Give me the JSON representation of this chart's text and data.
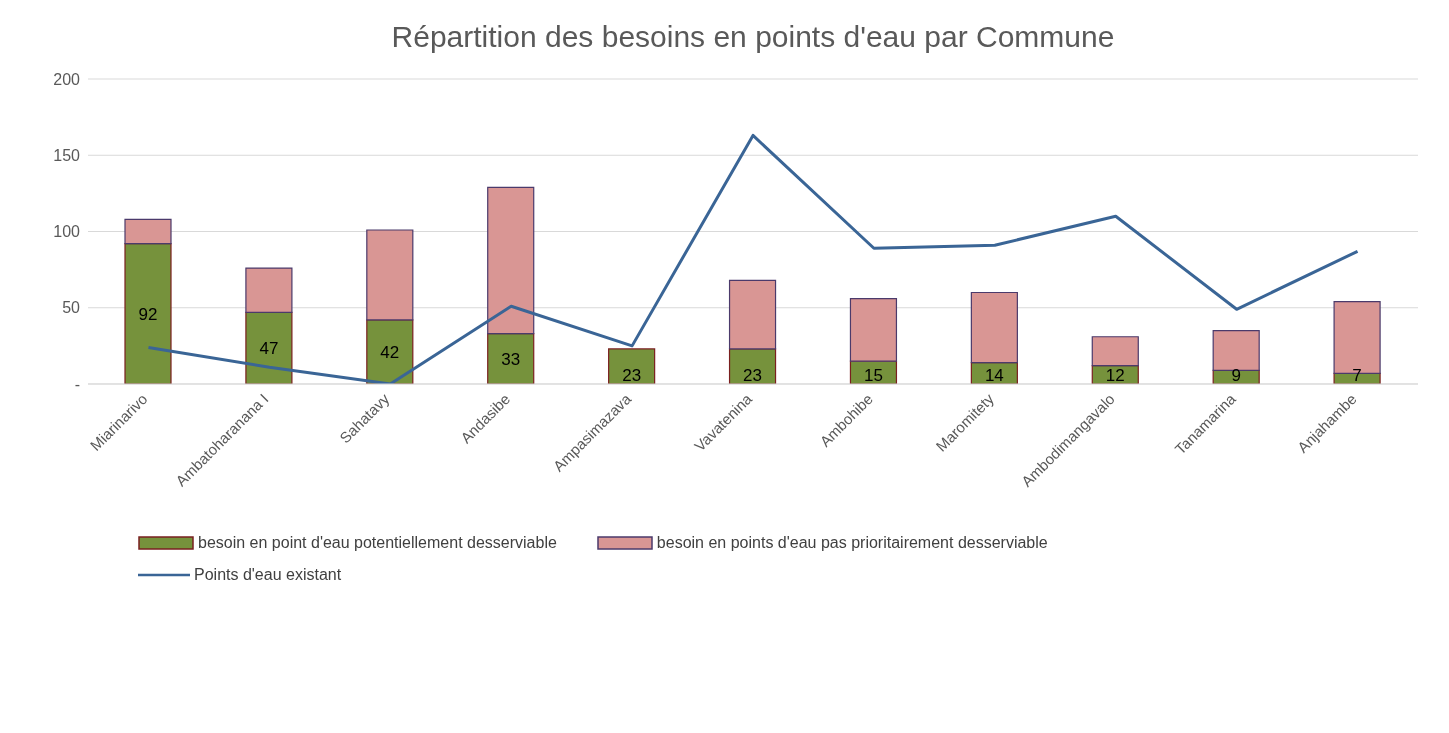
{
  "chart_data": {
    "type": "bar",
    "title": "Répartition des besoins en points d'eau par Commune",
    "categories": [
      "Miarinarivo",
      "Ambatoharanana I",
      "Sahatavy",
      "Andasibe",
      "Ampasimazava",
      "Vavatenina",
      "Ambohibe",
      "Maromitety",
      "Ambodimangavalo",
      "Tanamarina",
      "Anjahambe"
    ],
    "stacked": true,
    "series": [
      {
        "name": "besoin en point d'eau potentiellement desserviable",
        "color": "#76923c",
        "values": [
          92,
          47,
          42,
          33,
          23,
          23,
          15,
          14,
          12,
          9,
          7
        ],
        "value_labels": [
          "92",
          "47",
          "42",
          "33",
          "23",
          "23",
          "15",
          "14",
          "12",
          "9",
          "7"
        ]
      },
      {
        "name": "besoin en points d'eau pas prioritairement desserviable",
        "color": "#d99694",
        "values": [
          16,
          29,
          59,
          96,
          0,
          45,
          41,
          46,
          19,
          26,
          47
        ]
      },
      {
        "name": "Points d'eau existant",
        "type": "line",
        "color": "#3a6596",
        "values": [
          24,
          11,
          0,
          51,
          25,
          163,
          89,
          91,
          110,
          49,
          87
        ]
      }
    ],
    "ylim": [
      0,
      200
    ],
    "yticks": [
      {
        "value": 0,
        "label": "-"
      },
      50,
      100,
      150,
      200
    ],
    "grid": "y",
    "legend": "bottom",
    "marker": "none"
  }
}
